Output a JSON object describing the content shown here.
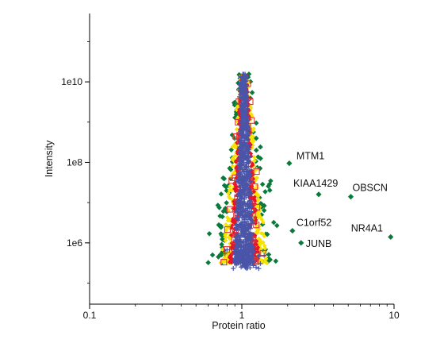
{
  "chart_data": {
    "type": "scatter",
    "xlabel": "Protein ratio",
    "ylabel": "Intensity",
    "x_scale": "log",
    "y_scale": "log",
    "xlim": [
      0.1,
      10
    ],
    "ylim": [
      30000,
      500000000000.0
    ],
    "x_ticks": [
      {
        "value": 0.1,
        "label": "0.1"
      },
      {
        "value": 1,
        "label": "1"
      },
      {
        "value": 10,
        "label": "10"
      }
    ],
    "y_ticks": [
      {
        "value": 1000000,
        "label": "1e6"
      },
      {
        "value": 100000000,
        "label": "1e8"
      },
      {
        "value": 10000000000,
        "label": "1e10"
      }
    ],
    "grid": false,
    "colors": {
      "blue": "#4a55a8",
      "red": "#e8132a",
      "yellow": "#f7e300",
      "green": "#0a7a3c",
      "square": "#e03a3a"
    },
    "annotations": [
      {
        "label": "MTM1",
        "x": 2.05,
        "y": 95000000
      },
      {
        "label": "KIAA1429",
        "x": 3.2,
        "y": 16000000
      },
      {
        "label": "OBSCN",
        "x": 5.2,
        "y": 14000000
      },
      {
        "label": "C1orf52",
        "x": 2.15,
        "y": 2000000
      },
      {
        "label": "NR4A1",
        "x": 9.5,
        "y": 1400000
      },
      {
        "label": "JUNB",
        "x": 2.45,
        "y": 1000000
      }
    ]
  }
}
